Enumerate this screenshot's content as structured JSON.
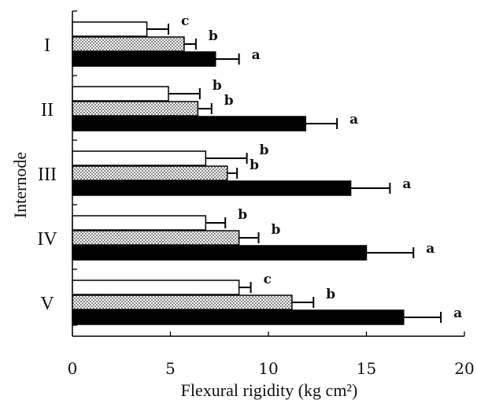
{
  "chart_data": {
    "type": "bar",
    "orientation": "horizontal",
    "xlabel": "Flexural rigidity (kg cm²)",
    "ylabel": "Internode",
    "xlim": [
      0,
      20
    ],
    "xticks": [
      0,
      5,
      10,
      15,
      20
    ],
    "categories": [
      "I",
      "II",
      "III",
      "IV",
      "V"
    ],
    "grid": false,
    "series": [
      {
        "fill": "white",
        "color": "#ffffff",
        "values": [
          3.8,
          4.9,
          6.8,
          6.8,
          8.5
        ],
        "errors": [
          1.1,
          1.6,
          2.1,
          1.0,
          0.6
        ],
        "labels": [
          "c",
          "b",
          "b",
          "b",
          "c"
        ]
      },
      {
        "fill": "dotted",
        "color": "#d9d9d9",
        "values": [
          5.7,
          6.4,
          7.9,
          8.5,
          11.2
        ],
        "errors": [
          0.6,
          0.7,
          0.5,
          1.0,
          1.1
        ],
        "labels": [
          "b",
          "b",
          "b",
          "b",
          "b"
        ]
      },
      {
        "fill": "solid",
        "color": "#000000",
        "values": [
          7.3,
          11.9,
          14.2,
          15.0,
          16.9
        ],
        "errors": [
          1.2,
          1.6,
          2.0,
          2.4,
          1.9
        ],
        "labels": [
          "a",
          "a",
          "a",
          "a",
          "a"
        ]
      }
    ]
  }
}
